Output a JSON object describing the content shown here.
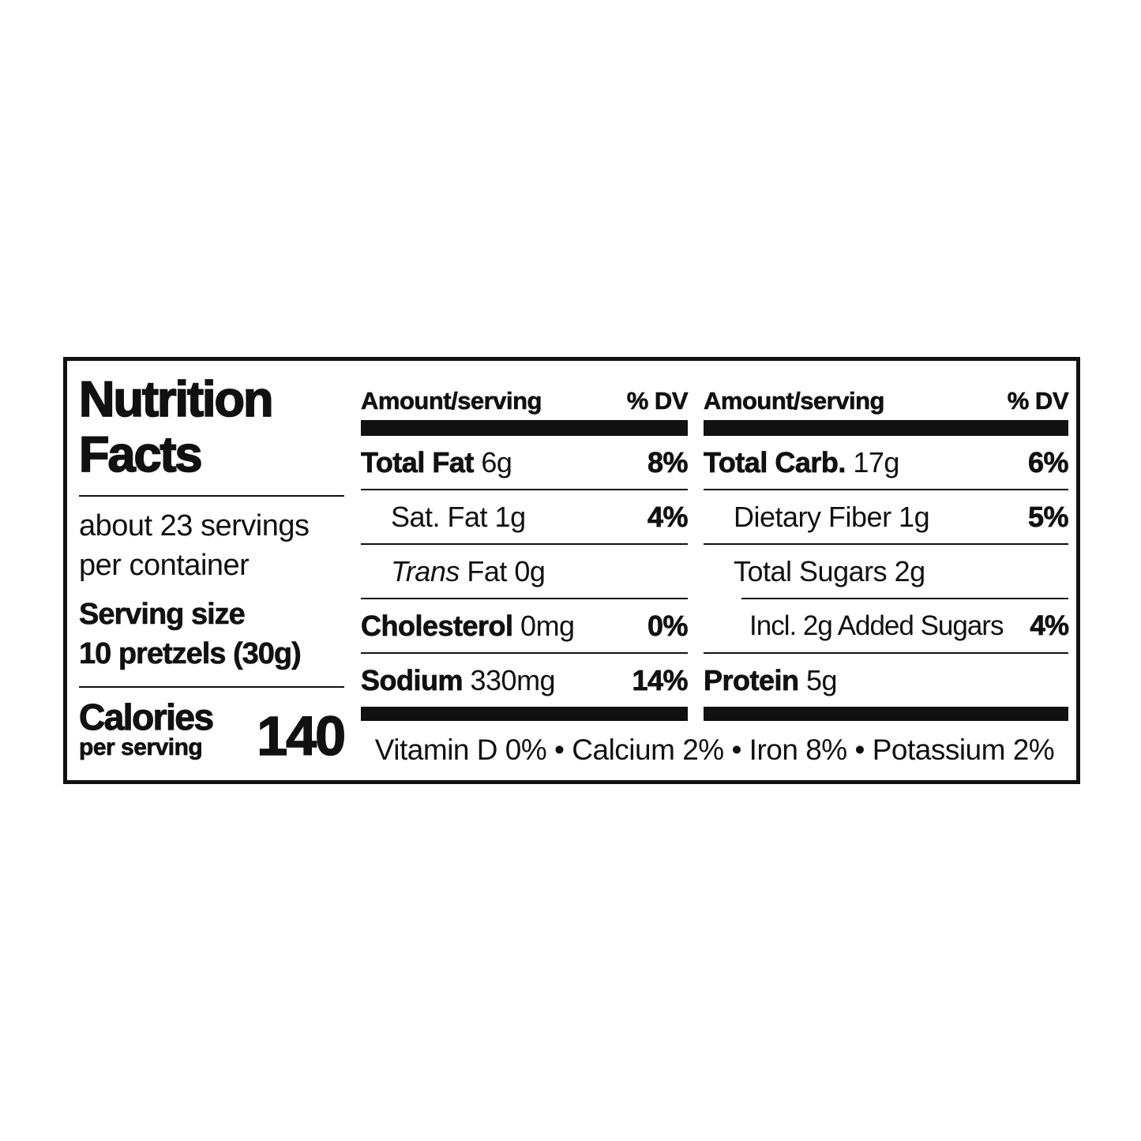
{
  "colors": {
    "ink": "#111111",
    "background": "#ffffff"
  },
  "nutrition_label": {
    "title": {
      "line1": "Nutrition",
      "line2": "Facts"
    },
    "servings": {
      "line1": "about 23 servings",
      "line2": "per container"
    },
    "serving_size": {
      "label": "Serving size",
      "value": "10 pretzels (30g)"
    },
    "calories": {
      "label": "Calories",
      "sublabel": "per serving",
      "value": "140"
    },
    "headers": {
      "amount": "Amount/serving",
      "dv": "% DV"
    },
    "columns": {
      "middle": {
        "rows": [
          {
            "b": "Total Fat",
            "r": " 6g",
            "dv": "8%"
          },
          {
            "r": "Sat. Fat 1g",
            "dv": "4%"
          },
          {
            "i": "Trans",
            "r": " Fat 0g",
            "dv": ""
          },
          {
            "b": "Cholesterol",
            "r": " 0mg",
            "dv": "0%"
          },
          {
            "b": "Sodium",
            "r": " 330mg",
            "dv": "14%"
          }
        ]
      },
      "right": {
        "rows": [
          {
            "b": "Total Carb.",
            "r": " 17g",
            "dv": "6%"
          },
          {
            "r": "Dietary Fiber 1g",
            "dv": "5%"
          },
          {
            "r": "Total Sugars 2g",
            "dv": ""
          },
          {
            "r": "Incl. 2g Added Sugars",
            "dv": "4%"
          },
          {
            "b": "Protein",
            "r": " 5g",
            "dv": ""
          }
        ]
      }
    },
    "footer": "Vitamin D 0% • Calcium 2% • Iron 8% • Potassium 2%"
  }
}
